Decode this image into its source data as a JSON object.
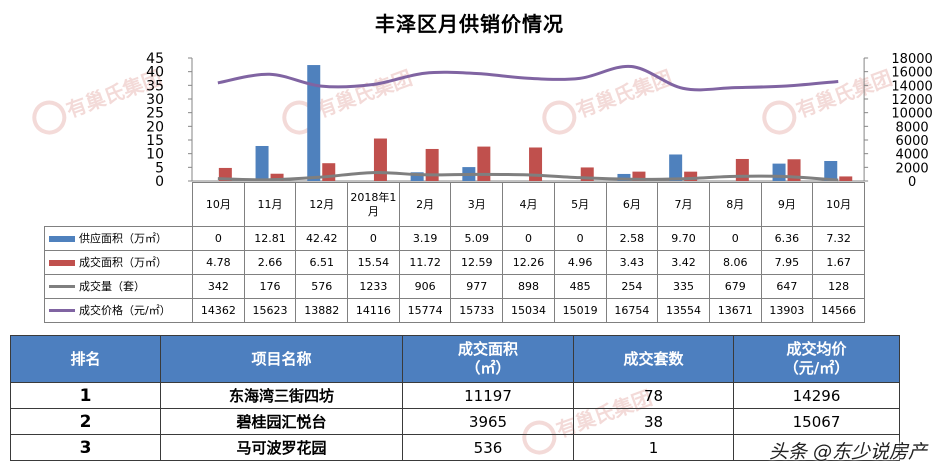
{
  "title": "丰泽区月供销价情况",
  "chart_data": {
    "type": "bar",
    "categories": [
      "10月",
      "11月",
      "12月",
      "2018年1月",
      "2月",
      "3月",
      "4月",
      "5月",
      "6月",
      "7月",
      "8月",
      "9月",
      "10月"
    ],
    "series": [
      {
        "name": "供应面积（万㎡）",
        "kind": "bar",
        "axis": "left",
        "color": "#4f81bd",
        "values": [
          0,
          12.81,
          42.42,
          0,
          3.19,
          5.09,
          0,
          0,
          2.58,
          9.7,
          0,
          6.36,
          7.32
        ],
        "labels": [
          "0",
          "12.81",
          "42.42",
          "0",
          "3.19",
          "5.09",
          "0",
          "0",
          "2.58",
          "9.70",
          "0",
          "6.36",
          "7.32"
        ]
      },
      {
        "name": "成交面积（万㎡）",
        "kind": "bar",
        "axis": "left",
        "color": "#c0504d",
        "values": [
          4.78,
          2.66,
          6.51,
          15.54,
          11.72,
          12.59,
          12.26,
          4.96,
          3.43,
          3.42,
          8.06,
          7.95,
          1.67
        ],
        "labels": [
          "4.78",
          "2.66",
          "6.51",
          "15.54",
          "11.72",
          "12.59",
          "12.26",
          "4.96",
          "3.43",
          "3.42",
          "8.06",
          "7.95",
          "1.67"
        ]
      },
      {
        "name": "成交量（套）",
        "kind": "line",
        "axis": "right",
        "color": "#7f7f7f",
        "values": [
          342,
          176,
          576,
          1233,
          906,
          977,
          898,
          485,
          254,
          335,
          679,
          647,
          128
        ],
        "labels": [
          "342",
          "176",
          "576",
          "1233",
          "906",
          "977",
          "898",
          "485",
          "254",
          "335",
          "679",
          "647",
          "128"
        ]
      },
      {
        "name": "成交价格（元/㎡）",
        "kind": "line",
        "axis": "right",
        "color": "#8064a2",
        "values": [
          14362,
          15623,
          13882,
          14116,
          15774,
          15733,
          15034,
          15019,
          16754,
          13554,
          13671,
          13903,
          14566
        ],
        "labels": [
          "14362",
          "15623",
          "13882",
          "14116",
          "15774",
          "15733",
          "15034",
          "15019",
          "16754",
          "13554",
          "13671",
          "13903",
          "14566"
        ]
      }
    ],
    "y_left": {
      "min": 0,
      "max": 45,
      "step": 5,
      "ticks": [
        "0",
        "5",
        "10",
        "15",
        "20",
        "25",
        "30",
        "35",
        "40",
        "45"
      ]
    },
    "y_right": {
      "min": 0,
      "max": 18000,
      "step": 2000,
      "ticks": [
        "0",
        "2000",
        "4000",
        "6000",
        "8000",
        "10000",
        "12000",
        "14000",
        "16000",
        "18000"
      ]
    },
    "grid": false,
    "legend": "data-table"
  },
  "ranking": {
    "headers": [
      "排名",
      "项目名称",
      "成交面积\n（㎡）",
      "成交套数",
      "成交均价\n（元/㎡）"
    ],
    "rows": [
      {
        "rank": "1",
        "name": "东海湾三街四坊",
        "area": "11197",
        "units": "78",
        "price": "14296"
      },
      {
        "rank": "2",
        "name": "碧桂园汇悦台",
        "area": "3965",
        "units": "38",
        "price": "15067"
      },
      {
        "rank": "3",
        "name": "马可波罗花园",
        "area": "536",
        "units": "1",
        "price": ""
      }
    ]
  },
  "watermark": {
    "text": "头条 @东少说房产",
    "logo_text": "有巢氏集团"
  }
}
